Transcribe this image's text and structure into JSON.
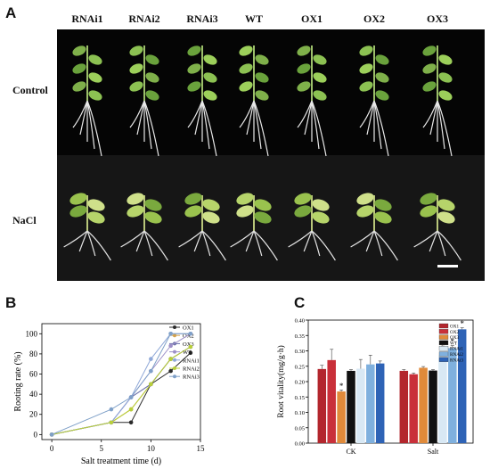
{
  "panels": {
    "a": "A",
    "b": "B",
    "c": "C"
  },
  "photo": {
    "columns": [
      "RNAi1",
      "RNAi2",
      "RNAi3",
      "WT",
      "OX1",
      "OX2",
      "OX3"
    ],
    "rows": [
      "Control",
      "NaCl"
    ]
  },
  "chart_data": [
    {
      "type": "line",
      "xlabel": "Salt treatment time (d)",
      "ylabel": "Rooting rate (%)",
      "xlim": [
        -1,
        15
      ],
      "ylim": [
        -5,
        110
      ],
      "xticks": [
        0,
        5,
        10,
        15
      ],
      "yticks": [
        0,
        20,
        40,
        60,
        80,
        100
      ],
      "legend_position": "top-right",
      "x": [
        0,
        6,
        8,
        10,
        12,
        14
      ],
      "series": [
        {
          "name": "OX1",
          "color": "#2a2a2a",
          "values": [
            0,
            12,
            12,
            50,
            63,
            81
          ]
        },
        {
          "name": "OX2",
          "color": "#d2a14d",
          "values": [
            0,
            12,
            25,
            50,
            75,
            87
          ]
        },
        {
          "name": "OX3",
          "color": "#6a6fa8",
          "values": [
            0,
            12,
            37,
            50,
            75,
            87
          ]
        },
        {
          "name": "WT",
          "color": "#9d8fc8",
          "values": [
            0,
            12,
            37,
            63,
            88,
            100
          ]
        },
        {
          "name": "RNAi1",
          "color": "#8fa8d8",
          "values": [
            0,
            12,
            37,
            75,
            100,
            100
          ]
        },
        {
          "name": "RNAi2",
          "color": "#b8cf3a",
          "values": [
            0,
            12,
            25,
            50,
            75,
            87
          ]
        },
        {
          "name": "RNAi3",
          "color": "#7fa0c8",
          "values": [
            0,
            25,
            37,
            63,
            100,
            100
          ]
        }
      ]
    },
    {
      "type": "bar",
      "xlabel": "",
      "ylabel": "Root vitality(mg/g·h)",
      "ylim": [
        0,
        0.4
      ],
      "yticks": [
        "0.00",
        "0.05",
        "0.10",
        "0.15",
        "0.20",
        "0.25",
        "0.30",
        "0.35",
        "0.40"
      ],
      "categories": [
        "CK",
        "Salt"
      ],
      "legend_position": "top-right",
      "significance_mark": "*",
      "series": [
        {
          "name": "OX1",
          "color": "#b3262d",
          "values": [
            0.241,
            0.235
          ],
          "err": [
            0.012,
            0.004
          ],
          "sig": [
            false,
            false
          ]
        },
        {
          "name": "OX2",
          "color": "#c9303a",
          "values": [
            0.27,
            0.224
          ],
          "err": [
            0.035,
            0.004
          ],
          "sig": [
            false,
            false
          ]
        },
        {
          "name": "OX3",
          "color": "#e08a3a",
          "values": [
            0.168,
            0.245
          ],
          "err": [
            0.005,
            0.004
          ],
          "sig": [
            true,
            false
          ]
        },
        {
          "name": "WT",
          "color": "#111111",
          "values": [
            0.235,
            0.236
          ],
          "err": [
            0.004,
            0.003
          ],
          "sig": [
            false,
            false
          ]
        },
        {
          "name": "RNAi1",
          "color": "#d8e8f4",
          "values": [
            0.242,
            0.285
          ],
          "err": [
            0.03,
            0.01
          ],
          "sig": [
            false,
            true
          ]
        },
        {
          "name": "RNAi2",
          "color": "#7fb0de",
          "values": [
            0.256,
            0.309
          ],
          "err": [
            0.03,
            0.008
          ],
          "sig": [
            false,
            true
          ]
        },
        {
          "name": "RNAi3",
          "color": "#2e63b6",
          "values": [
            0.259,
            0.37
          ],
          "err": [
            0.008,
            0.005
          ],
          "sig": [
            false,
            true
          ]
        }
      ]
    }
  ]
}
